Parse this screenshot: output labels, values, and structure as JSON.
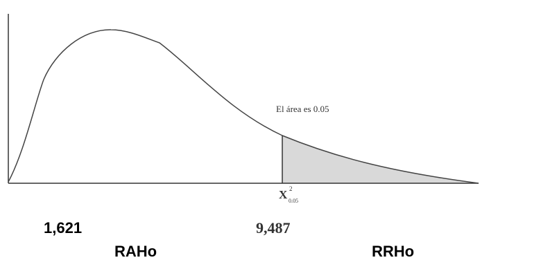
{
  "diagram": {
    "area_annotation": "El área es 0.05",
    "critical_symbol": "X",
    "critical_superscript": "2",
    "critical_subscript": "0.05",
    "observed_value": "1,621",
    "critical_value": "9,487",
    "acceptance_region_label": "RAHo",
    "rejection_region_label": "RRHo",
    "colors": {
      "curve": "#444444",
      "axis": "#333333",
      "shaded_region": "#d9d9d9"
    }
  }
}
